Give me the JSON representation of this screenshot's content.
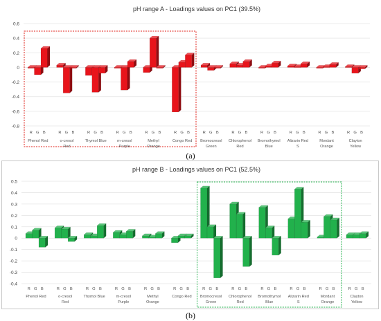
{
  "chart_data": [
    {
      "type": "bar",
      "title": "pH range A - Loadings values on PC1 (39.5%)",
      "caption": "(a)",
      "channel_labels": [
        "R",
        "G",
        "B"
      ],
      "categories": [
        "Phenol Red",
        "o-cresol Red",
        "Thymol Blue",
        "m-cresol Purple",
        "Methyl Orange",
        "Congo Red",
        "Bromocresol Green",
        "Chlorophenol Red",
        "Bromothymol Blue",
        "Alizarin Red S",
        "Mordant Orange",
        "Clayton Yellow"
      ],
      "values": [
        [
          0.0,
          -0.1,
          0.26
        ],
        [
          0.03,
          -0.35,
          0.0
        ],
        [
          -0.11,
          -0.34,
          -0.08
        ],
        [
          0.0,
          -0.31,
          0.08
        ],
        [
          -0.07,
          0.4,
          0.0
        ],
        [
          -0.61,
          0.07,
          0.17
        ],
        [
          0.03,
          -0.04,
          0.0
        ],
        [
          0.05,
          0.03,
          0.08
        ],
        [
          0.0,
          0.02,
          0.06
        ],
        [
          0.02,
          0.01,
          0.05
        ],
        [
          0.0,
          0.01,
          0.04
        ],
        [
          0.01,
          -0.08,
          -0.02
        ]
      ],
      "ylim": [
        -0.8,
        0.6
      ],
      "yticks": [
        "0.6",
        "0.4",
        "0.2",
        "0",
        "-0.2",
        "-0.4",
        "-0.6",
        "-0.8"
      ],
      "bar_color": "#e8141b",
      "highlight_groups": [
        0,
        5
      ],
      "highlight_color": "#e0201a",
      "gridlines": true
    },
    {
      "type": "bar",
      "title": "pH range B - Loadings values on PC1 (52.5%)",
      "caption": "(b)",
      "channel_labels": [
        "R",
        "G",
        "B"
      ],
      "categories": [
        "Phenol Red",
        "o-cresol Red",
        "Thymol Blue",
        "m-cresol Purple",
        "Methyl Orange",
        "Congo Red",
        "Bromocresol Green",
        "Chlorophenol Red",
        "Bromothymol Blue",
        "Alizarin Red S",
        "Mordant Orange",
        "Clayton Yellow"
      ],
      "values": [
        [
          0.04,
          0.07,
          -0.08
        ],
        [
          0.09,
          0.08,
          -0.03
        ],
        [
          0.03,
          0.02,
          0.11
        ],
        [
          0.05,
          0.03,
          0.06
        ],
        [
          0.02,
          0.01,
          0.04
        ],
        [
          -0.04,
          0.02,
          0.02
        ],
        [
          0.44,
          0.1,
          -0.35
        ],
        [
          0.3,
          0.21,
          -0.25
        ],
        [
          0.27,
          0.09,
          -0.15
        ],
        [
          0.17,
          0.43,
          0.14
        ],
        [
          0.01,
          0.19,
          0.16
        ],
        [
          0.03,
          0.03,
          0.04
        ]
      ],
      "ylim": [
        -0.4,
        0.5
      ],
      "yticks": [
        "0.5",
        "0.4",
        "0.3",
        "0.2",
        "0.1",
        "0",
        "-0.1",
        "-0.2",
        "-0.3",
        "-0.4"
      ],
      "bar_color": "#22b14c",
      "highlight_groups": [
        6,
        10
      ],
      "highlight_color": "#22b14c",
      "gridlines": true
    }
  ]
}
